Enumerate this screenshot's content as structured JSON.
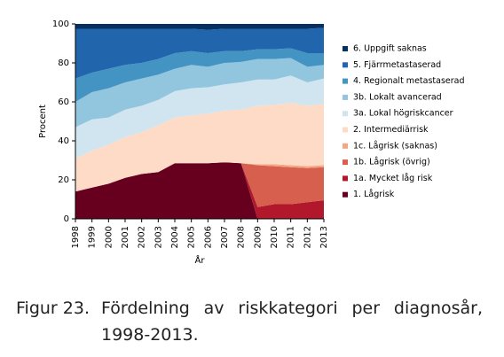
{
  "chart_data": {
    "type": "stacked-area",
    "x": [
      1998,
      1999,
      2000,
      2001,
      2002,
      2003,
      2004,
      2005,
      2006,
      2007,
      2008,
      2009,
      2010,
      2011,
      2012,
      2013
    ],
    "xlim": [
      1998,
      2013
    ],
    "ylim": [
      0,
      100
    ],
    "yticks": [
      0,
      20,
      40,
      60,
      80,
      100
    ],
    "xlabel": "År",
    "ylabel": "Procent",
    "series": [
      {
        "name": "1. Lågrisk",
        "color": "#67001f",
        "values": [
          14,
          16,
          18,
          21,
          23,
          24,
          28.5,
          28.5,
          28.5,
          29,
          28.5,
          0,
          0,
          0,
          0,
          0
        ]
      },
      {
        "name": "1a. Mycket låg risk",
        "color": "#b2182b",
        "values": [
          0,
          0,
          0,
          0,
          0,
          0,
          0,
          0,
          0,
          0,
          0,
          6,
          7.5,
          7.5,
          8.5,
          9.5
        ]
      },
      {
        "name": "1b. Lågrisk (övrig)",
        "color": "#d6604d",
        "values": [
          0,
          0,
          0,
          0,
          0,
          0,
          0,
          0,
          0,
          0,
          0,
          21.5,
          19.5,
          19,
          17.5,
          17
        ]
      },
      {
        "name": "1c. Lågrisk (saknas)",
        "color": "#f4a582",
        "values": [
          0,
          0,
          0,
          0,
          0,
          0,
          0,
          0,
          0,
          0,
          0,
          0.5,
          1,
          1,
          1,
          1
        ]
      },
      {
        "name": "2. Intermediärrisk",
        "color": "#fddbc7",
        "values": [
          17,
          19,
          20,
          21,
          21.5,
          24,
          23.5,
          24.5,
          25.5,
          26.5,
          27.5,
          30,
          30.5,
          32,
          31,
          31.5
        ]
      },
      {
        "name": "3a. Lokal högriskcancer",
        "color": "#d1e5f0",
        "values": [
          16,
          16,
          14,
          14,
          13.5,
          13,
          13.5,
          14,
          13.5,
          13.5,
          14,
          13.5,
          13,
          14,
          12,
          13
        ]
      },
      {
        "name": "3b. Lokalt avancerad",
        "color": "#92c5de",
        "values": [
          13,
          14,
          15,
          14,
          14,
          13,
          11.5,
          12,
          10.5,
          11,
          10.5,
          10.5,
          10.5,
          9,
          8,
          7
        ]
      },
      {
        "name": "4. Regionalt metastaserad",
        "color": "#4393c3",
        "values": [
          12,
          10,
          10,
          9,
          8,
          8,
          8,
          7,
          7,
          6,
          5.5,
          5,
          5,
          5,
          7,
          6
        ]
      },
      {
        "name": "5. Fjärrmetastaserad",
        "color": "#2166ac",
        "values": [
          25.5,
          22.5,
          20.5,
          18.5,
          17.5,
          15.5,
          12.5,
          11.5,
          12,
          11.5,
          11.5,
          10.5,
          10.5,
          10,
          12.5,
          13
        ]
      },
      {
        "name": "6. Uppgift saknas",
        "color": "#053061",
        "values": [
          2.5,
          2.5,
          2.5,
          2.5,
          2.5,
          2.5,
          2.5,
          2.5,
          3,
          2.5,
          2.5,
          2.5,
          2.5,
          2.5,
          2.5,
          2
        ]
      }
    ],
    "figure_label": "Figur 23.",
    "caption": "Fördelning av riskkategori per diagnosår, 1998-2013."
  }
}
